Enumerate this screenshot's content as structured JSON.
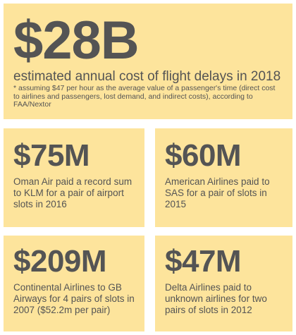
{
  "headline": {
    "figure": "$28B",
    "description": "estimated annual cost of flight delays in 2018",
    "footnote": "* assuming $47 per hour as the average value of a passenger's time (direct cost to airlines and passengers, lost demand, and indirect costs), according to FAA/Nextor"
  },
  "facts": [
    {
      "figure": "$75M",
      "description": "Oman Air paid a record sum to KLM for a pair of airport slots in 2016"
    },
    {
      "figure": "$60M",
      "description": "American Airlines paid to SAS for a pair of slots in 2015"
    },
    {
      "figure": "$209M",
      "description": "Continental Airlines to GB Airways for 4 pairs of slots in 2007 ($52.2m per pair)"
    },
    {
      "figure": "$47M",
      "description": "Delta Airlines paid to unknown airlines for two pairs of slots in 2012"
    }
  ],
  "colors": {
    "card_background": "#fde49c",
    "text": "#545454"
  }
}
